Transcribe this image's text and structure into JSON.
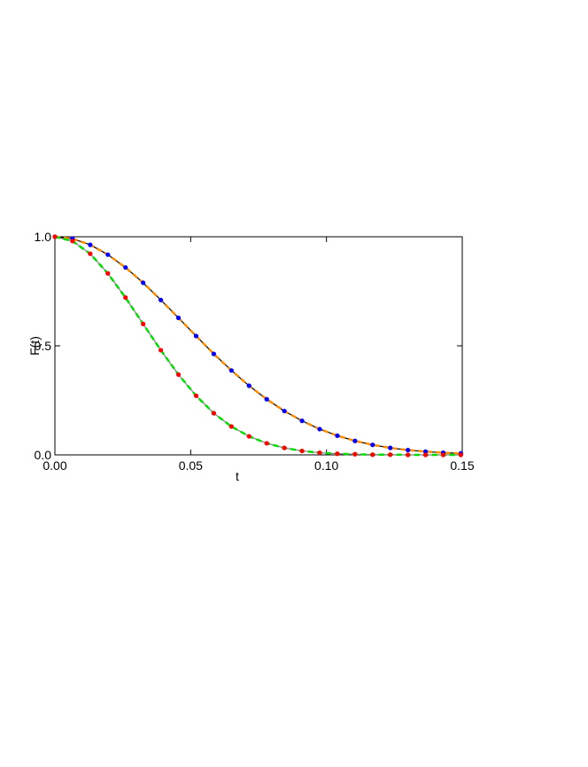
{
  "chart_data": {
    "type": "line",
    "xlabel": "t",
    "ylabel": "F(t)",
    "xlim": [
      0,
      0.15
    ],
    "ylim": [
      0,
      1
    ],
    "xticks": [
      {
        "value": 0,
        "label": "0.00"
      },
      {
        "value": 0.05,
        "label": "0.05"
      },
      {
        "value": 0.1,
        "label": "0.10"
      },
      {
        "value": 0.15,
        "label": "0.15"
      }
    ],
    "yticks": [
      {
        "value": 0,
        "label": "0.0"
      },
      {
        "value": 0.5,
        "label": "0.5"
      },
      {
        "value": 1,
        "label": "1.0"
      }
    ],
    "x": [
      0,
      0.0065,
      0.013,
      0.0195,
      0.026,
      0.0325,
      0.039,
      0.0455,
      0.052,
      0.0585,
      0.065,
      0.0715,
      0.078,
      0.0845,
      0.091,
      0.0975,
      0.104,
      0.1105,
      0.117,
      0.1235,
      0.13,
      0.1365,
      0.143,
      0.1495
    ],
    "series": [
      {
        "color": "#0000ff",
        "line_color": "#000000",
        "dash_color": "#ff8c00",
        "values": [
          1,
          0.991,
          0.963,
          0.918,
          0.859,
          0.789,
          0.71,
          0.628,
          0.545,
          0.463,
          0.387,
          0.317,
          0.255,
          0.201,
          0.156,
          0.118,
          0.088,
          0.064,
          0.046,
          0.032,
          0.022,
          0.015,
          0.01,
          0.007
        ]
      },
      {
        "color": "#ff0000",
        "line_color": "#808080",
        "dash_color": "#00dd00",
        "values": [
          1,
          0.98,
          0.922,
          0.832,
          0.721,
          0.6,
          0.48,
          0.368,
          0.271,
          0.191,
          0.13,
          0.085,
          0.053,
          0.032,
          0.018,
          0.01,
          0.005,
          0.003,
          0.001,
          0.001,
          0,
          0,
          0,
          0
        ]
      }
    ]
  }
}
